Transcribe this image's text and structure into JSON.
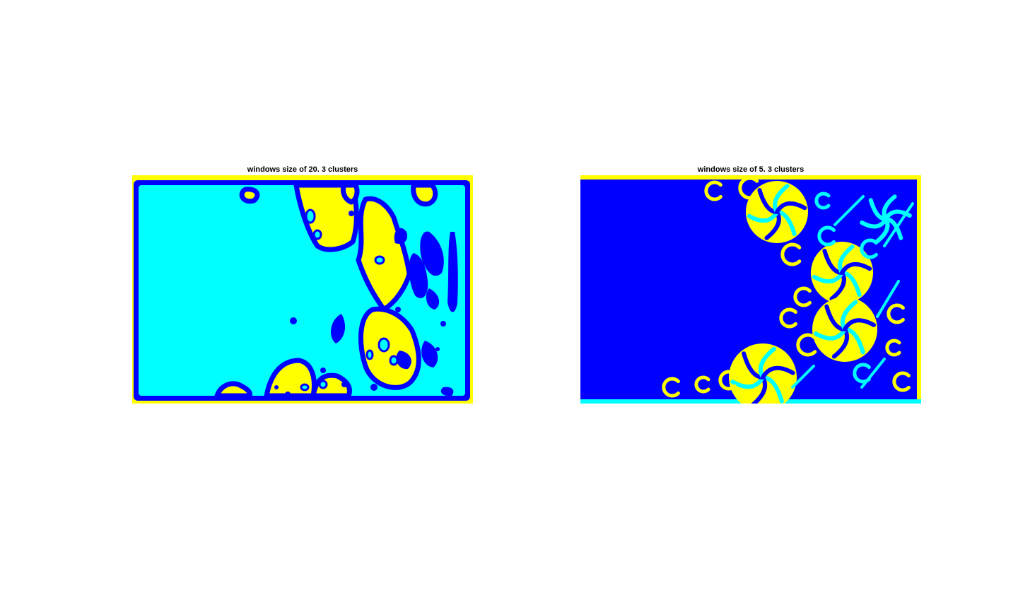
{
  "colors": {
    "cluster_1": "#0000ff",
    "cluster_2": "#00ffff",
    "cluster_3": "#ffff00",
    "background": "#ffffff"
  },
  "panels": [
    {
      "title": "windows size of 20. 3 clusters"
    },
    {
      "title": "windows size of 5. 3 clusters"
    }
  ]
}
